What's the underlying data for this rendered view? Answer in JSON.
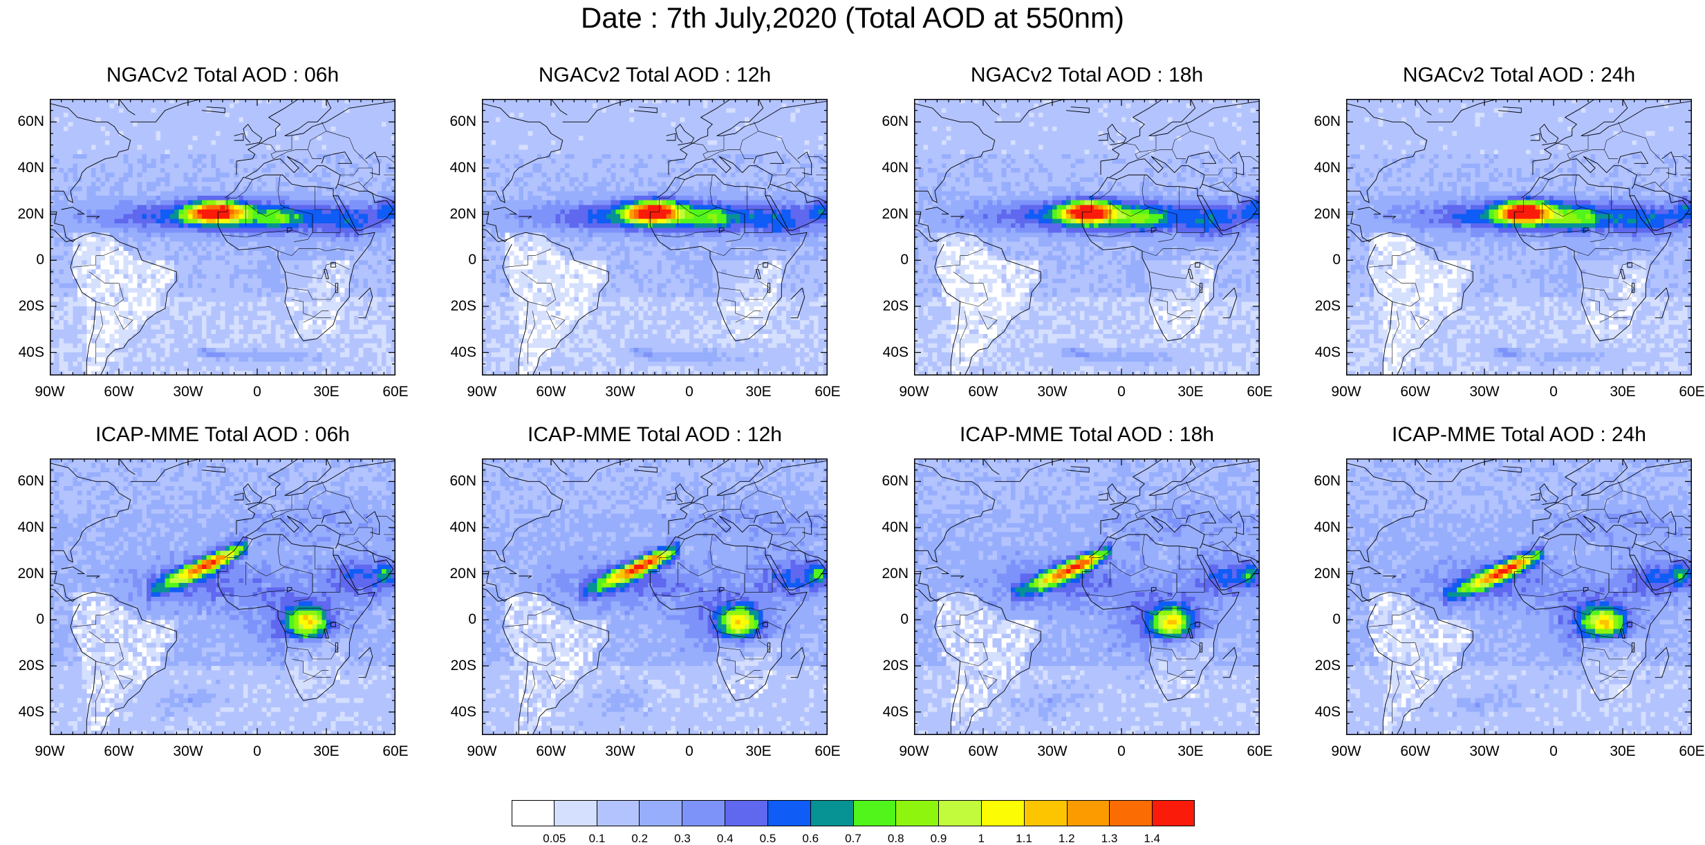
{
  "title": "Date : 7th July,2020 (Total AOD at 550nm)",
  "panels": [
    {
      "title": "NGACv2 Total AOD : 06h",
      "model": "ngac",
      "shift": -4
    },
    {
      "title": "NGACv2 Total AOD : 12h",
      "model": "ngac",
      "shift": 0
    },
    {
      "title": "NGACv2 Total AOD : 18h",
      "model": "ngac",
      "shift": 3
    },
    {
      "title": "NGACv2 Total AOD : 24h",
      "model": "ngac",
      "shift": 6
    },
    {
      "title": "ICAP-MME Total AOD : 06h",
      "model": "icap",
      "shift": 4
    },
    {
      "title": "ICAP-MME Total AOD : 12h",
      "model": "icap",
      "shift": 1
    },
    {
      "title": "ICAP-MME Total AOD : 18h",
      "model": "icap",
      "shift": -2
    },
    {
      "title": "ICAP-MME Total AOD : 24h",
      "model": "icap",
      "shift": -5
    }
  ],
  "map_extent": {
    "lon": [
      -90,
      60
    ],
    "lat": [
      -50,
      70
    ]
  },
  "lat_labels": [
    {
      "value": 60,
      "text": "60N"
    },
    {
      "value": 40,
      "text": "40N"
    },
    {
      "value": 20,
      "text": "20N"
    },
    {
      "value": 0,
      "text": "0"
    },
    {
      "value": -20,
      "text": "20S"
    },
    {
      "value": -40,
      "text": "40S"
    }
  ],
  "lon_labels": [
    {
      "value": -90,
      "text": "90W"
    },
    {
      "value": -60,
      "text": "60W"
    },
    {
      "value": -30,
      "text": "30W"
    },
    {
      "value": 0,
      "text": "0"
    },
    {
      "value": 30,
      "text": "30E"
    },
    {
      "value": 60,
      "text": "60E"
    }
  ],
  "colorbar": {
    "colors": [
      "#ffffff",
      "#d5dffe",
      "#b3c3fe",
      "#97aefd",
      "#7e93fa",
      "#5f68ee",
      "#0f5cf6",
      "#079293",
      "#51f51b",
      "#8ef50e",
      "#c2fb3c",
      "#fcfc04",
      "#fcc500",
      "#fc9b00",
      "#fb6c02",
      "#fb1b0a"
    ],
    "labels": [
      "0.05",
      "0.1",
      "0.2",
      "0.3",
      "0.4",
      "0.5",
      "0.6",
      "0.7",
      "0.8",
      "0.9",
      "1",
      "1.1",
      "1.2",
      "1.3",
      "1.4"
    ]
  }
}
